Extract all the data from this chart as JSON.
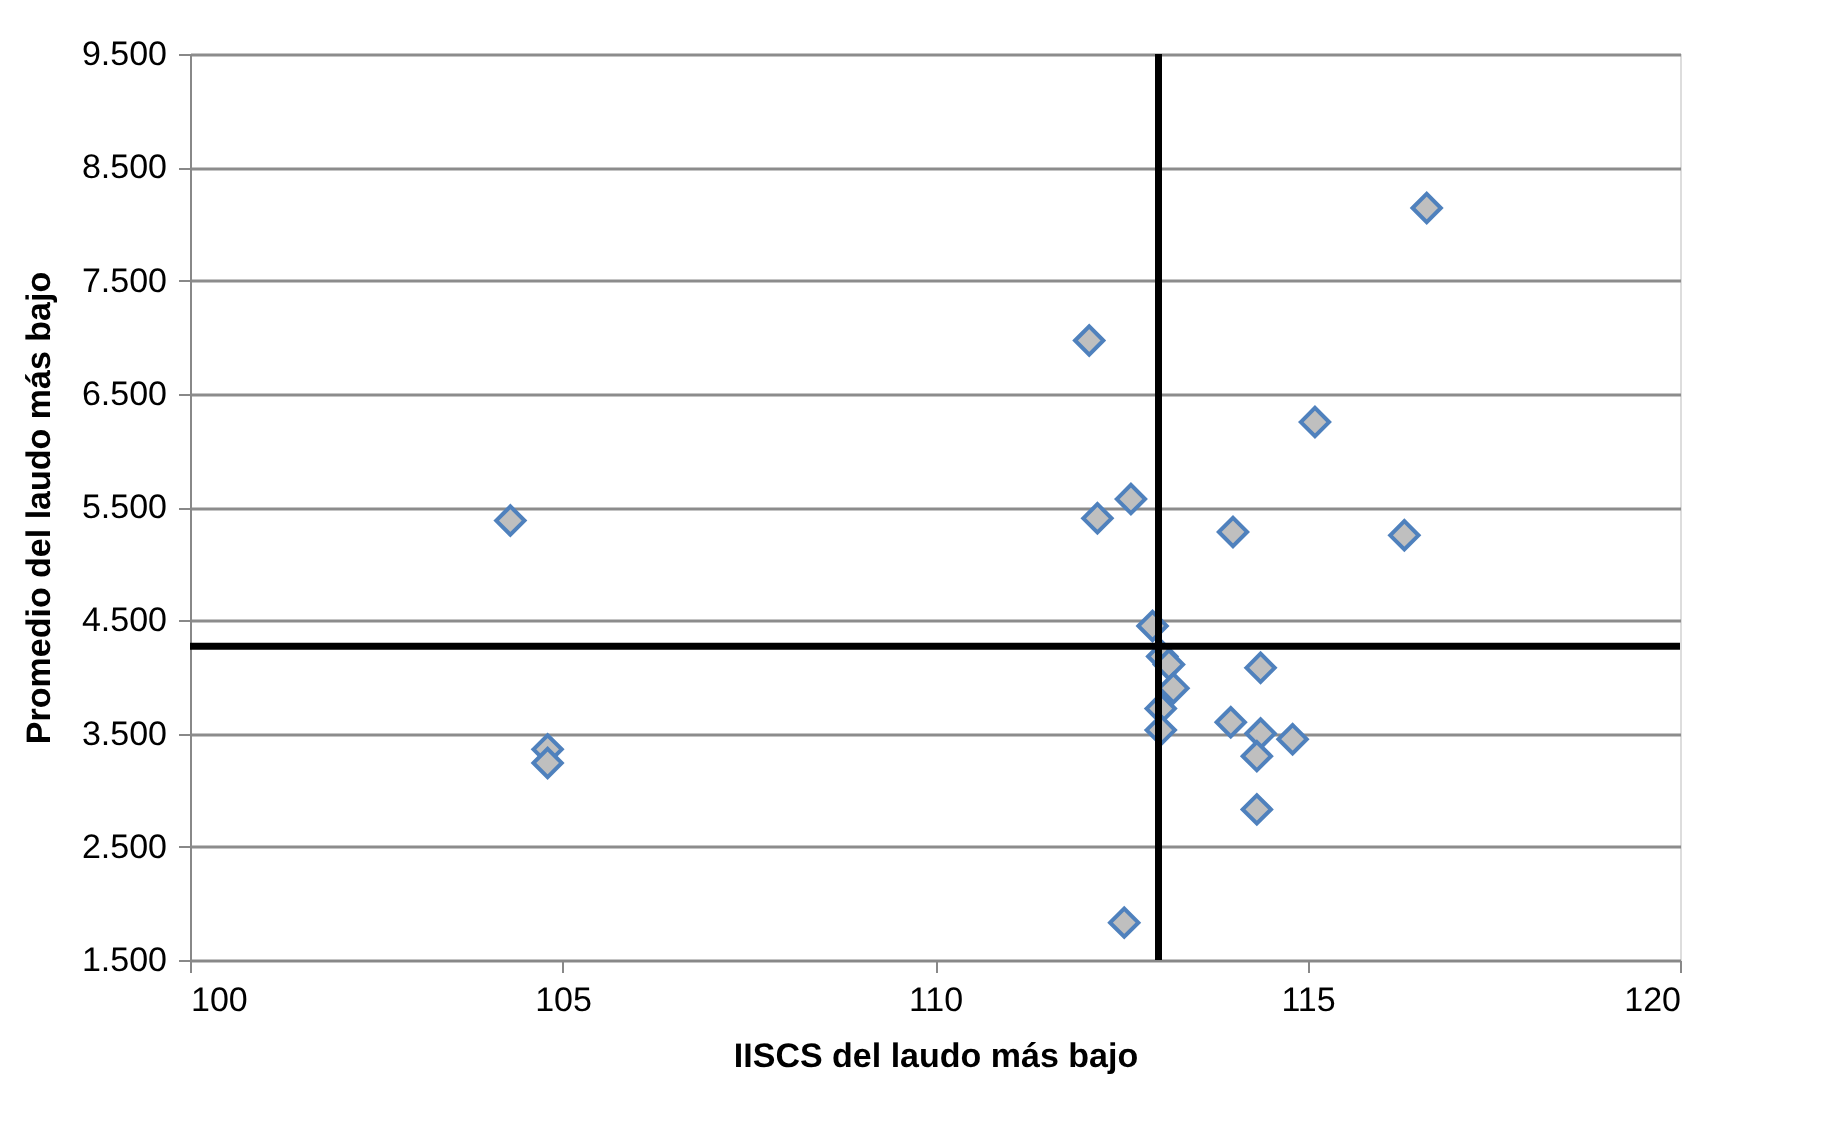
{
  "chart_data": {
    "type": "scatter",
    "xlabel": "IISCS del laudo más bajo",
    "ylabel": "Promedio del laudo más bajo",
    "marker": "diamond",
    "grid": "y",
    "xlim": [
      100,
      120
    ],
    "xticks": [
      100,
      105,
      110,
      115,
      120
    ],
    "ylim": [
      1500,
      9500
    ],
    "yticks": [
      {
        "value": 1500,
        "label": "1.500"
      },
      {
        "value": 2500,
        "label": "2.500"
      },
      {
        "value": 3500,
        "label": "3.500"
      },
      {
        "value": 4500,
        "label": "4.500"
      },
      {
        "value": 5500,
        "label": "5.500"
      },
      {
        "value": 6500,
        "label": "6.500"
      },
      {
        "value": 7500,
        "label": "7.500"
      },
      {
        "value": 8500,
        "label": "8.500"
      },
      {
        "value": 9500,
        "label": "9.500"
      }
    ],
    "series": [
      {
        "color": "#bfbfbf",
        "x": [
          104.3,
          104.8,
          104.8,
          112.07,
          116.6,
          115.1,
          112.18,
          112.63,
          114.0,
          116.3,
          112.92,
          113.05,
          113.14,
          113.2,
          113.03,
          113.03,
          114.37,
          113.97,
          114.37,
          114.8,
          114.32,
          114.32,
          112.54
        ],
        "values": [
          5380,
          3360,
          3240,
          6970,
          8140,
          6250,
          5400,
          5570,
          5280,
          5250,
          4450,
          4180,
          4110,
          3900,
          3720,
          3530,
          4080,
          3600,
          3500,
          3450,
          3300,
          2830,
          1830
        ]
      }
    ],
    "ref_lines": [
      {
        "axis": "x",
        "value": 113.0,
        "color": "#000000"
      },
      {
        "axis": "y",
        "value": 4270,
        "color": "#000000"
      }
    ]
  }
}
